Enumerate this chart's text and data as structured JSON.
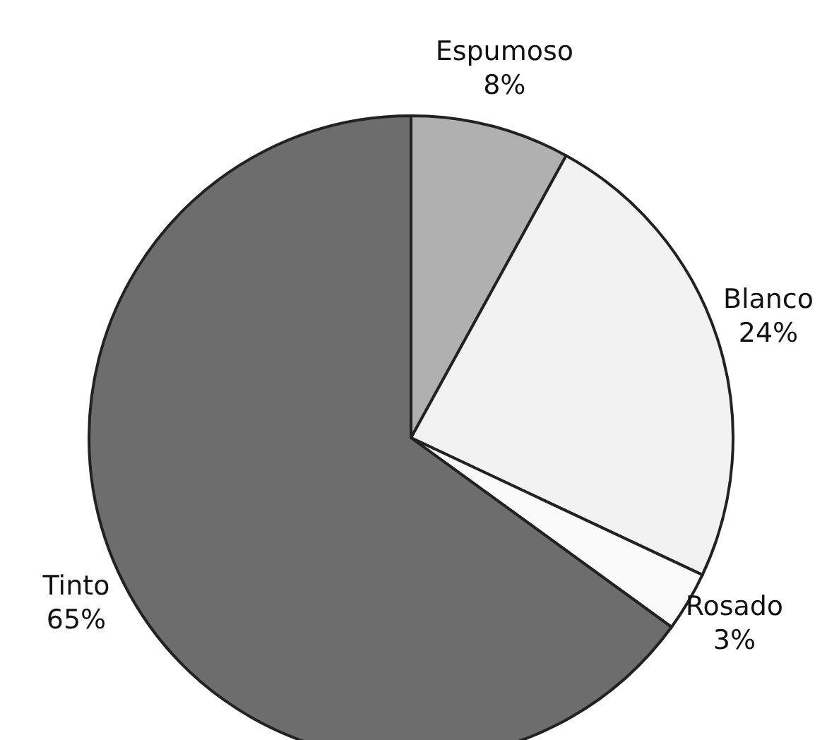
{
  "chart_data": {
    "type": "pie",
    "categories": [
      "Espumoso",
      "Blanco",
      "Rosado",
      "Tinto"
    ],
    "values": [
      8,
      24,
      3,
      65
    ],
    "value_labels": [
      "8%",
      "24%",
      "3%",
      "65%"
    ],
    "colors": [
      "#b0b0b0",
      "#f2f2f2",
      "#fafafa",
      "#6d6d6d"
    ],
    "legend": false
  }
}
